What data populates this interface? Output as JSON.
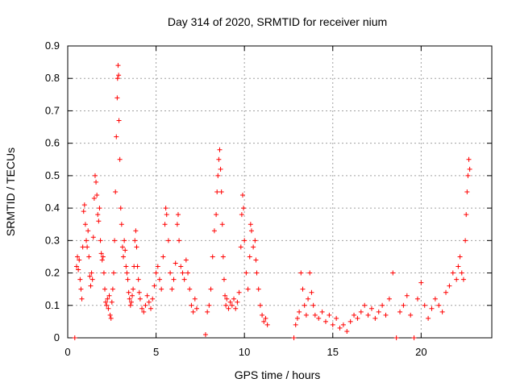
{
  "chart_data": {
    "type": "scatter",
    "title": "Day 314 of 2020, SRMTID for receiver nium",
    "xlabel": "GPS time / hours",
    "ylabel": "SRMTID / TECUs",
    "xlim": [
      0,
      24
    ],
    "ylim": [
      0,
      0.9
    ],
    "xticks": [
      0,
      5,
      10,
      15,
      20
    ],
    "xtick_labels": [
      "0",
      "5",
      "10",
      "15",
      "20"
    ],
    "yticks": [
      0,
      0.1,
      0.2,
      0.3,
      0.4,
      0.5,
      0.6,
      0.7,
      0.8,
      0.9
    ],
    "ytick_labels": [
      "0",
      "0.1",
      "0.2",
      "0.3",
      "0.4",
      "0.5",
      "0.6",
      "0.7",
      "0.8",
      "0.9"
    ],
    "grid": true,
    "marker": "plus",
    "color": "#ff0000",
    "series": [
      {
        "name": "SRMTID",
        "points": [
          [
            0.4,
            0.0
          ],
          [
            0.5,
            0.22
          ],
          [
            0.55,
            0.25
          ],
          [
            0.6,
            0.21
          ],
          [
            0.65,
            0.24
          ],
          [
            0.7,
            0.18
          ],
          [
            0.75,
            0.15
          ],
          [
            0.8,
            0.12
          ],
          [
            0.85,
            0.28
          ],
          [
            0.9,
            0.39
          ],
          [
            0.95,
            0.41
          ],
          [
            1.0,
            0.35
          ],
          [
            1.05,
            0.3
          ],
          [
            1.1,
            0.28
          ],
          [
            1.15,
            0.33
          ],
          [
            1.2,
            0.25
          ],
          [
            1.25,
            0.19
          ],
          [
            1.3,
            0.16
          ],
          [
            1.35,
            0.2
          ],
          [
            1.4,
            0.18
          ],
          [
            1.45,
            0.31
          ],
          [
            1.5,
            0.43
          ],
          [
            1.55,
            0.5
          ],
          [
            1.6,
            0.48
          ],
          [
            1.65,
            0.44
          ],
          [
            1.7,
            0.38
          ],
          [
            1.75,
            0.36
          ],
          [
            1.8,
            0.4
          ],
          [
            1.85,
            0.3
          ],
          [
            1.9,
            0.26
          ],
          [
            1.95,
            0.24
          ],
          [
            2.0,
            0.25
          ],
          [
            2.05,
            0.2
          ],
          [
            2.1,
            0.15
          ],
          [
            2.15,
            0.11
          ],
          [
            2.2,
            0.1
          ],
          [
            2.25,
            0.12
          ],
          [
            2.3,
            0.09
          ],
          [
            2.35,
            0.13
          ],
          [
            2.4,
            0.07
          ],
          [
            2.45,
            0.06
          ],
          [
            2.5,
            0.11
          ],
          [
            2.55,
            0.15
          ],
          [
            2.6,
            0.2
          ],
          [
            2.65,
            0.3
          ],
          [
            2.7,
            0.45
          ],
          [
            2.75,
            0.62
          ],
          [
            2.8,
            0.74
          ],
          [
            2.82,
            0.8
          ],
          [
            2.85,
            0.84
          ],
          [
            2.88,
            0.81
          ],
          [
            2.9,
            0.67
          ],
          [
            2.95,
            0.55
          ],
          [
            3.0,
            0.4
          ],
          [
            3.05,
            0.35
          ],
          [
            3.1,
            0.28
          ],
          [
            3.15,
            0.25
          ],
          [
            3.2,
            0.3
          ],
          [
            3.25,
            0.27
          ],
          [
            3.3,
            0.22
          ],
          [
            3.35,
            0.2
          ],
          [
            3.4,
            0.18
          ],
          [
            3.45,
            0.14
          ],
          [
            3.5,
            0.12
          ],
          [
            3.55,
            0.1
          ],
          [
            3.6,
            0.11
          ],
          [
            3.65,
            0.13
          ],
          [
            3.7,
            0.15
          ],
          [
            3.75,
            0.22
          ],
          [
            3.8,
            0.3
          ],
          [
            3.85,
            0.33
          ],
          [
            3.9,
            0.28
          ],
          [
            3.95,
            0.22
          ],
          [
            4.0,
            0.18
          ],
          [
            4.05,
            0.14
          ],
          [
            4.1,
            0.12
          ],
          [
            4.2,
            0.09
          ],
          [
            4.3,
            0.08
          ],
          [
            4.4,
            0.1
          ],
          [
            4.5,
            0.13
          ],
          [
            4.6,
            0.11
          ],
          [
            4.7,
            0.09
          ],
          [
            4.8,
            0.12
          ],
          [
            4.9,
            0.16
          ],
          [
            5.0,
            0.2
          ],
          [
            5.1,
            0.22
          ],
          [
            5.2,
            0.18
          ],
          [
            5.3,
            0.15
          ],
          [
            5.4,
            0.25
          ],
          [
            5.5,
            0.35
          ],
          [
            5.55,
            0.4
          ],
          [
            5.6,
            0.38
          ],
          [
            5.7,
            0.3
          ],
          [
            5.8,
            0.2
          ],
          [
            5.9,
            0.15
          ],
          [
            6.0,
            0.18
          ],
          [
            6.1,
            0.23
          ],
          [
            6.2,
            0.35
          ],
          [
            6.25,
            0.38
          ],
          [
            6.3,
            0.3
          ],
          [
            6.4,
            0.22
          ],
          [
            6.5,
            0.2
          ],
          [
            6.6,
            0.18
          ],
          [
            6.7,
            0.24
          ],
          [
            6.8,
            0.2
          ],
          [
            6.9,
            0.15
          ],
          [
            7.0,
            0.1
          ],
          [
            7.1,
            0.08
          ],
          [
            7.2,
            0.12
          ],
          [
            7.3,
            0.09
          ],
          [
            7.8,
            0.01
          ],
          [
            7.9,
            0.08
          ],
          [
            8.0,
            0.1
          ],
          [
            8.1,
            0.15
          ],
          [
            8.2,
            0.25
          ],
          [
            8.3,
            0.33
          ],
          [
            8.4,
            0.38
          ],
          [
            8.45,
            0.45
          ],
          [
            8.5,
            0.5
          ],
          [
            8.55,
            0.55
          ],
          [
            8.6,
            0.58
          ],
          [
            8.65,
            0.52
          ],
          [
            8.7,
            0.45
          ],
          [
            8.75,
            0.35
          ],
          [
            8.8,
            0.25
          ],
          [
            8.85,
            0.18
          ],
          [
            8.9,
            0.13
          ],
          [
            8.95,
            0.1
          ],
          [
            9.0,
            0.12
          ],
          [
            9.1,
            0.09
          ],
          [
            9.2,
            0.11
          ],
          [
            9.3,
            0.1
          ],
          [
            9.4,
            0.12
          ],
          [
            9.5,
            0.09
          ],
          [
            9.6,
            0.11
          ],
          [
            9.7,
            0.14
          ],
          [
            9.8,
            0.28
          ],
          [
            9.85,
            0.38
          ],
          [
            9.9,
            0.44
          ],
          [
            9.95,
            0.4
          ],
          [
            10.0,
            0.3
          ],
          [
            10.1,
            0.2
          ],
          [
            10.2,
            0.15
          ],
          [
            10.3,
            0.25
          ],
          [
            10.35,
            0.35
          ],
          [
            10.4,
            0.33
          ],
          [
            10.5,
            0.28
          ],
          [
            10.6,
            0.3
          ],
          [
            10.65,
            0.24
          ],
          [
            10.7,
            0.2
          ],
          [
            10.8,
            0.15
          ],
          [
            10.9,
            0.1
          ],
          [
            11.0,
            0.07
          ],
          [
            11.1,
            0.05
          ],
          [
            11.2,
            0.06
          ],
          [
            11.3,
            0.04
          ],
          [
            12.8,
            0.0
          ],
          [
            12.9,
            0.04
          ],
          [
            13.0,
            0.06
          ],
          [
            13.1,
            0.08
          ],
          [
            13.2,
            0.2
          ],
          [
            13.3,
            0.15
          ],
          [
            13.4,
            0.1
          ],
          [
            13.5,
            0.07
          ],
          [
            13.6,
            0.12
          ],
          [
            13.7,
            0.2
          ],
          [
            13.8,
            0.14
          ],
          [
            13.9,
            0.1
          ],
          [
            14.0,
            0.07
          ],
          [
            14.2,
            0.06
          ],
          [
            14.4,
            0.08
          ],
          [
            14.6,
            0.05
          ],
          [
            14.8,
            0.07
          ],
          [
            15.0,
            0.04
          ],
          [
            15.2,
            0.06
          ],
          [
            15.4,
            0.03
          ],
          [
            15.6,
            0.04
          ],
          [
            15.8,
            0.02
          ],
          [
            16.0,
            0.05
          ],
          [
            16.2,
            0.07
          ],
          [
            16.4,
            0.06
          ],
          [
            16.6,
            0.08
          ],
          [
            16.8,
            0.1
          ],
          [
            17.0,
            0.07
          ],
          [
            17.2,
            0.09
          ],
          [
            17.4,
            0.06
          ],
          [
            17.6,
            0.08
          ],
          [
            17.8,
            0.1
          ],
          [
            18.0,
            0.07
          ],
          [
            18.2,
            0.12
          ],
          [
            18.4,
            0.2
          ],
          [
            18.6,
            0.0
          ],
          [
            18.8,
            0.08
          ],
          [
            19.0,
            0.1
          ],
          [
            19.2,
            0.13
          ],
          [
            19.4,
            0.07
          ],
          [
            19.6,
            0.0
          ],
          [
            19.8,
            0.12
          ],
          [
            20.0,
            0.17
          ],
          [
            20.2,
            0.1
          ],
          [
            20.4,
            0.06
          ],
          [
            20.6,
            0.09
          ],
          [
            20.8,
            0.12
          ],
          [
            21.0,
            0.1
          ],
          [
            21.2,
            0.08
          ],
          [
            21.4,
            0.14
          ],
          [
            21.6,
            0.16
          ],
          [
            21.8,
            0.2
          ],
          [
            22.0,
            0.18
          ],
          [
            22.1,
            0.22
          ],
          [
            22.2,
            0.25
          ],
          [
            22.3,
            0.2
          ],
          [
            22.4,
            0.18
          ],
          [
            22.5,
            0.3
          ],
          [
            22.55,
            0.38
          ],
          [
            22.6,
            0.45
          ],
          [
            22.65,
            0.5
          ],
          [
            22.7,
            0.55
          ],
          [
            22.75,
            0.52
          ]
        ]
      }
    ]
  }
}
